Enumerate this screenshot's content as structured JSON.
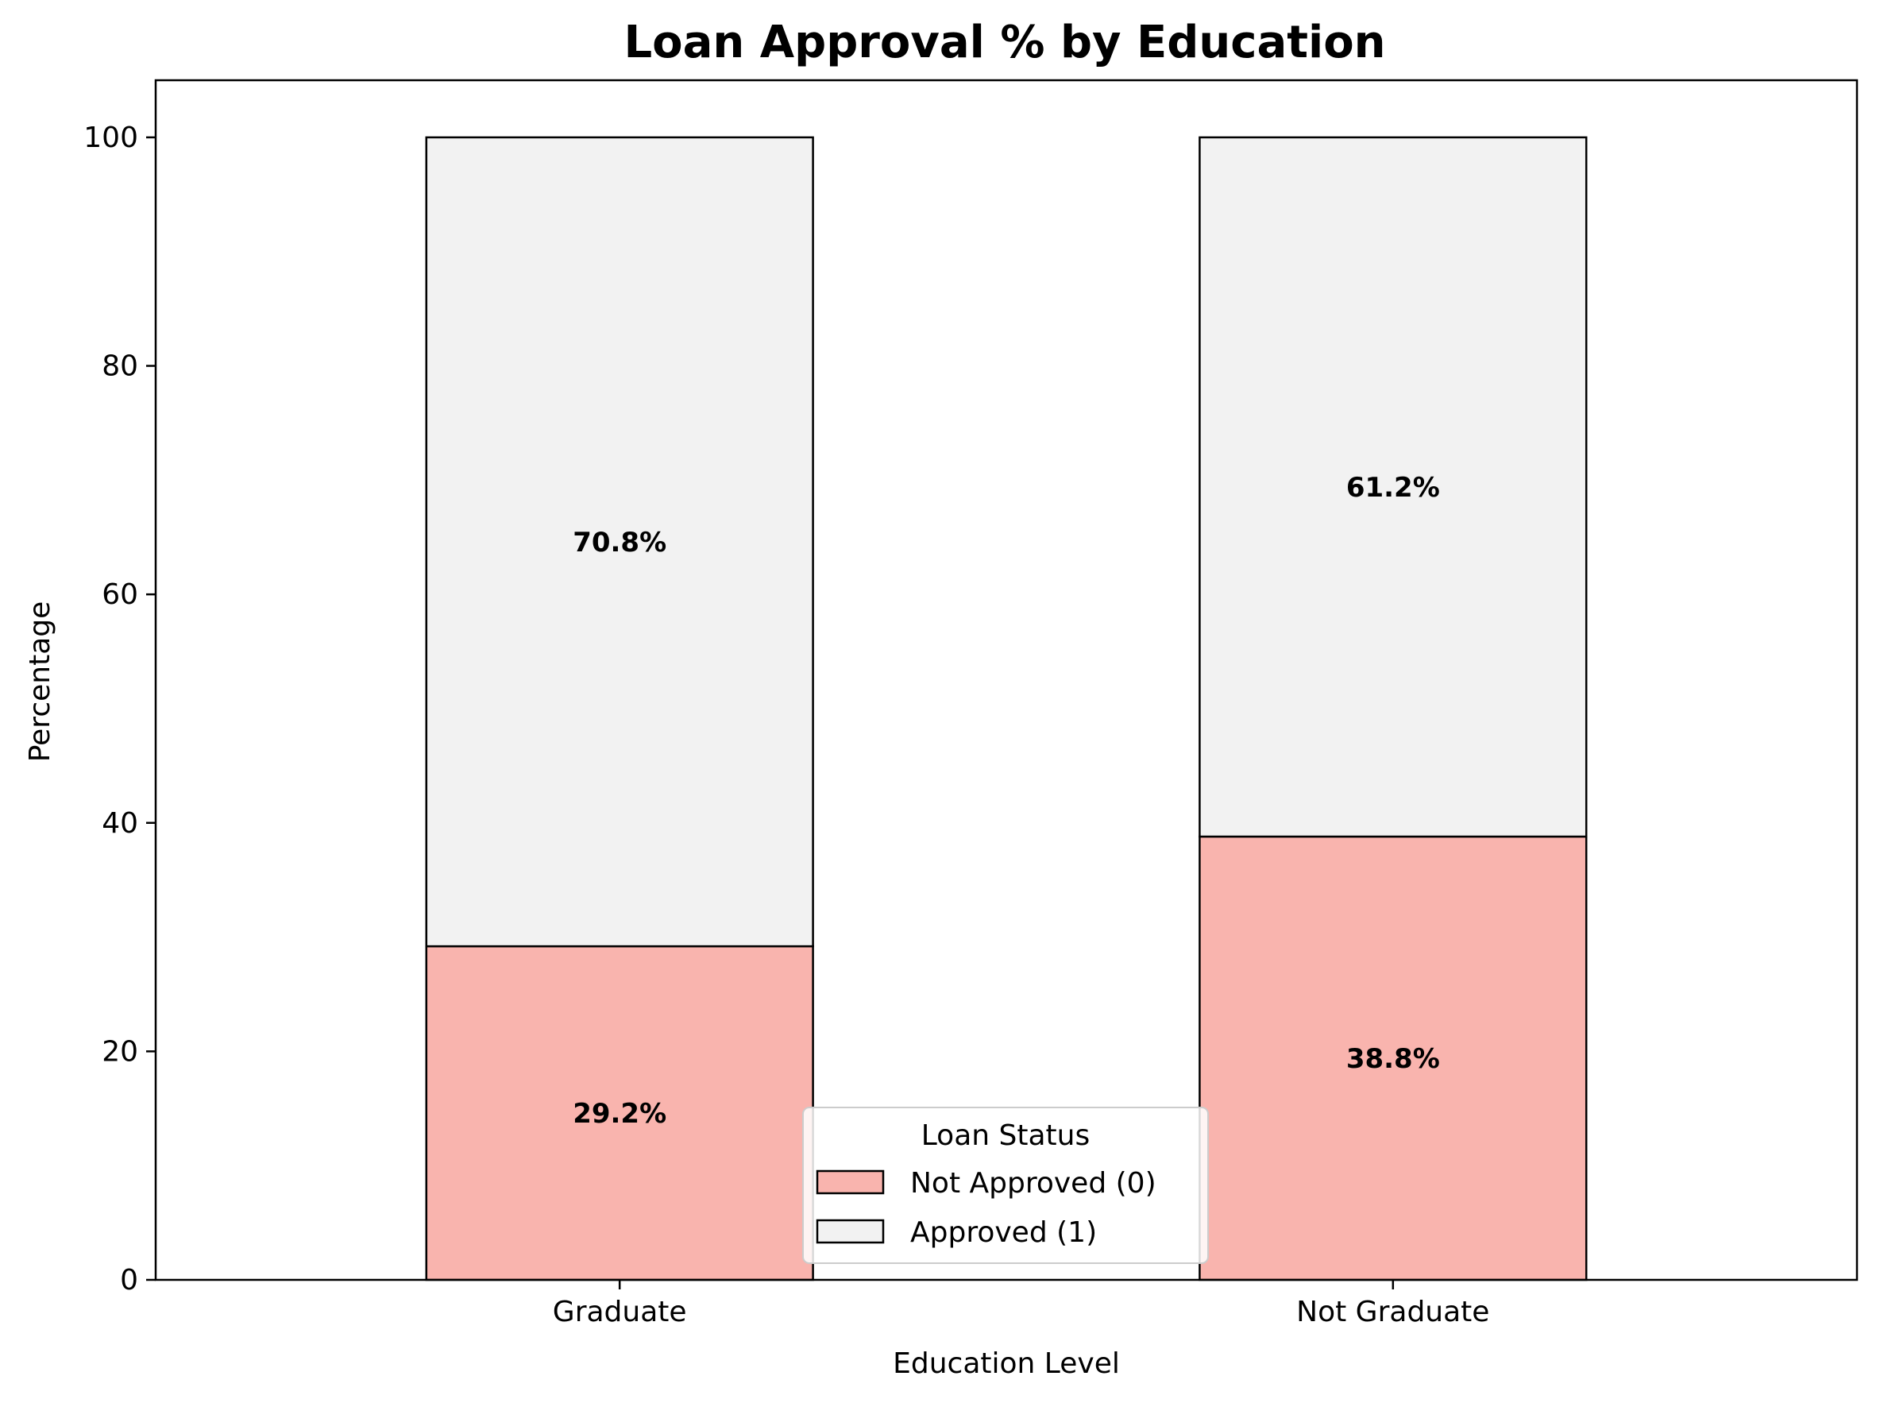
{
  "chart_data": {
    "type": "bar",
    "stacked": true,
    "title": "Loan Approval % by Education",
    "xlabel": "Education Level",
    "ylabel": "Percentage",
    "categories": [
      "Graduate",
      "Not Graduate"
    ],
    "ylim": [
      0,
      105
    ],
    "yticks": [
      0,
      20,
      40,
      60,
      80,
      100
    ],
    "grid": false,
    "series": [
      {
        "name": "Not Approved (0)",
        "values": [
          29.2,
          38.8
        ],
        "labels": [
          "29.2%",
          "38.8%"
        ],
        "color": "#f9b4ae"
      },
      {
        "name": "Approved (1)",
        "values": [
          70.8,
          61.2
        ],
        "labels": [
          "70.8%",
          "61.2%"
        ],
        "color": "#f2f2f2"
      }
    ],
    "legend": {
      "title": "Loan Status",
      "position": "bottom-center"
    }
  }
}
